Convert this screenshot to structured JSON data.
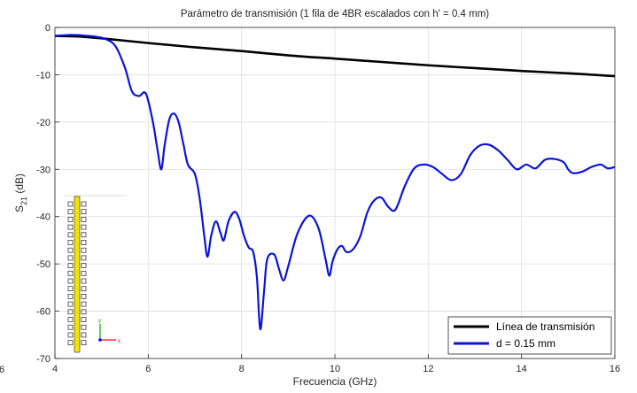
{
  "chart_data": {
    "type": "line",
    "title": "Parámetro de transmisión (1 fila de 4BR escalados con h' = 0.4 mm)",
    "xlabel": "Frecuencia (GHz)",
    "ylabel_main": "S",
    "ylabel_sub": "21",
    "ylabel_unit": " (dB)",
    "xlim": [
      4,
      16
    ],
    "ylim": [
      -70,
      0
    ],
    "xticks": [
      4,
      6,
      8,
      10,
      12,
      14,
      16
    ],
    "yticks": [
      0,
      -10,
      -20,
      -30,
      -40,
      -50,
      -60,
      -70
    ],
    "grid": true,
    "legend_position": "bottom-right",
    "series": [
      {
        "name": "Línea de transmisión",
        "color": "#000000",
        "x": [
          4,
          4.5,
          5,
          6,
          7,
          8,
          9,
          10,
          11,
          12,
          13,
          14,
          15,
          16
        ],
        "y": [
          -1.8,
          -1.9,
          -2.3,
          -3.3,
          -4.2,
          -5.0,
          -5.9,
          -6.6,
          -7.3,
          -8.0,
          -8.6,
          -9.2,
          -9.7,
          -10.3
        ]
      },
      {
        "name": "d = 0.15 mm",
        "color": "#0a14d8",
        "x": [
          4,
          4.3,
          4.6,
          4.9,
          5.1,
          5.3,
          5.5,
          5.65,
          5.8,
          5.95,
          6.1,
          6.2,
          6.28,
          6.35,
          6.45,
          6.55,
          6.65,
          6.75,
          6.85,
          7.0,
          7.1,
          7.2,
          7.27,
          7.35,
          7.45,
          7.55,
          7.62,
          7.72,
          7.85,
          7.95,
          8.05,
          8.15,
          8.25,
          8.33,
          8.4,
          8.48,
          8.55,
          8.7,
          8.8,
          8.9,
          9.0,
          9.2,
          9.45,
          9.65,
          9.8,
          9.88,
          9.95,
          10.05,
          10.15,
          10.25,
          10.4,
          10.55,
          10.7,
          10.85,
          11.0,
          11.15,
          11.3,
          11.5,
          11.7,
          11.9,
          12.1,
          12.3,
          12.5,
          12.7,
          12.9,
          13.1,
          13.3,
          13.5,
          13.7,
          13.9,
          14.1,
          14.3,
          14.5,
          14.7,
          14.9,
          15.0,
          15.1,
          15.3,
          15.5,
          15.7,
          15.85,
          16.0
        ],
        "y": [
          -1.8,
          -1.6,
          -1.7,
          -2.0,
          -2.5,
          -4.0,
          -8.5,
          -13.5,
          -14.5,
          -14.0,
          -20.0,
          -26.0,
          -30.0,
          -25.0,
          -19.5,
          -18.2,
          -20.0,
          -24.5,
          -29.0,
          -31.0,
          -36.0,
          -44.0,
          -48.5,
          -44.0,
          -41.0,
          -43.5,
          -45.0,
          -41.0,
          -39.0,
          -40.5,
          -44.0,
          -46.5,
          -47.5,
          -53.0,
          -63.8,
          -56.0,
          -49.0,
          -48.0,
          -51.0,
          -53.5,
          -50.5,
          -43.5,
          -39.8,
          -42.5,
          -49.0,
          -52.5,
          -49.5,
          -47.0,
          -46.2,
          -47.5,
          -46.8,
          -44.0,
          -39.0,
          -36.5,
          -36.0,
          -38.0,
          -38.5,
          -33.5,
          -29.8,
          -29.0,
          -29.5,
          -31.0,
          -32.3,
          -31.0,
          -27.0,
          -25.0,
          -24.8,
          -26.0,
          -28.0,
          -30.0,
          -29.0,
          -29.8,
          -28.0,
          -27.8,
          -28.5,
          -30.0,
          -30.8,
          -30.5,
          -29.5,
          -29.0,
          -29.8,
          -29.5
        ]
      }
    ]
  },
  "colors": {
    "inset_strip": "#f5e400",
    "inset_axis_x": "#ff0000",
    "inset_axis_y": "#00aa00",
    "inset_axis_z": "#0000ff"
  },
  "inset": {
    "axis_x_label": "x",
    "axis_y_label": "y"
  },
  "left_clip_label": "6"
}
